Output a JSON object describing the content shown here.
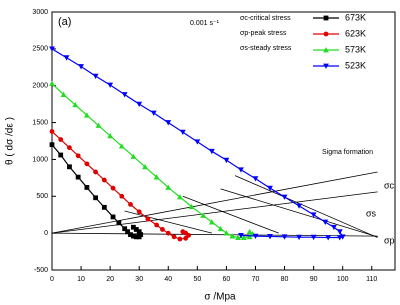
{
  "chart_data": {
    "type": "line",
    "panel_label": "(a)",
    "strain_rate": "0.001 s⁻¹",
    "notes": [
      "σc-critical stress",
      "σp-peak stress",
      "σs-steady stress"
    ],
    "x_label": "σ /Mpa",
    "y_label": "θ ( dσ /dε )",
    "xlim": [
      0,
      118
    ],
    "ylim": [
      -500,
      3000
    ],
    "xticks": [
      0,
      10,
      20,
      30,
      40,
      50,
      60,
      70,
      80,
      90,
      100,
      110
    ],
    "yticks": [
      -500,
      0,
      500,
      1000,
      1500,
      2000,
      2500,
      3000
    ],
    "series": [
      {
        "name": "673K",
        "color": "#000000",
        "marker": "square",
        "x": [
          0,
          3,
          6,
          9,
          12,
          15,
          18,
          21,
          23,
          25,
          26,
          27,
          28,
          29,
          30,
          30.5,
          30,
          29,
          28
        ],
        "values": [
          1200,
          1060,
          900,
          760,
          620,
          480,
          350,
          220,
          140,
          60,
          20,
          -20,
          -40,
          -50,
          -50,
          -20,
          20,
          50,
          80
        ]
      },
      {
        "name": "623K",
        "color": "#e00000",
        "marker": "circle",
        "x": [
          0,
          3,
          6,
          9,
          12,
          15,
          18,
          21,
          24,
          27,
          30,
          33,
          36,
          38,
          40,
          42,
          44,
          46,
          47,
          46,
          45
        ],
        "values": [
          1380,
          1270,
          1160,
          1050,
          940,
          830,
          720,
          610,
          500,
          390,
          290,
          190,
          110,
          50,
          0,
          -50,
          -80,
          -70,
          -30,
          0,
          20
        ]
      },
      {
        "name": "573K",
        "color": "#22dd22",
        "marker": "triangle-up",
        "x": [
          0,
          4,
          8,
          12,
          16,
          20,
          24,
          28,
          32,
          36,
          40,
          44,
          48,
          52,
          55,
          58,
          60,
          62,
          64,
          66,
          68,
          69,
          68
        ],
        "values": [
          2030,
          1880,
          1740,
          1600,
          1460,
          1320,
          1180,
          1040,
          900,
          760,
          620,
          490,
          360,
          240,
          150,
          60,
          0,
          -40,
          -60,
          -60,
          -50,
          -10,
          20
        ]
      },
      {
        "name": "523K",
        "color": "#0000ff",
        "marker": "triangle-down",
        "x": [
          0,
          5,
          10,
          15,
          20,
          25,
          30,
          35,
          40,
          45,
          50,
          55,
          60,
          65,
          70,
          75,
          80,
          85,
          90,
          94,
          97,
          99,
          100,
          99,
          95,
          90,
          85,
          80,
          75,
          70,
          65
        ],
        "values": [
          2500,
          2380,
          2260,
          2130,
          2010,
          1880,
          1750,
          1630,
          1500,
          1370,
          1240,
          1110,
          990,
          860,
          740,
          610,
          490,
          370,
          250,
          150,
          80,
          20,
          -50,
          -60,
          -60,
          -55,
          -55,
          -50,
          -45,
          -40,
          -30
        ]
      }
    ],
    "reference_lines": [
      {
        "label": "Sigma formation",
        "x": [
          0,
          112
        ],
        "values": [
          0,
          830
        ]
      },
      {
        "label": "σc",
        "x": [
          0,
          112
        ],
        "values": [
          0,
          560
        ]
      },
      {
        "label": "σs",
        "x": [
          63,
          112
        ],
        "values": [
          780,
          -60
        ]
      },
      {
        "label": "σp",
        "x": [
          0,
          112
        ],
        "values": [
          0,
          -40
        ]
      },
      {
        "x": [
          25,
          55
        ],
        "values": [
          300,
          0
        ]
      },
      {
        "x": [
          45,
          78
        ],
        "values": [
          500,
          0
        ]
      },
      {
        "x": [
          58,
          112
        ],
        "values": [
          600,
          -50
        ]
      }
    ],
    "reference_color": "#000000"
  }
}
